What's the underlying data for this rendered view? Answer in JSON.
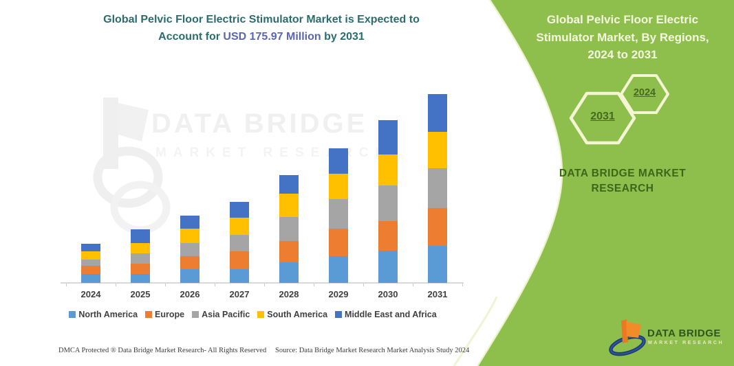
{
  "left_panel": {
    "title_line1": "Global Pelvic Floor Electric Stimulator Market is Expected to",
    "title_line2_prefix": "Account for ",
    "title_value": "USD 175.97 Million",
    "title_line2_suffix": " by 2031",
    "watermark_line1": "DATA BRIDGE",
    "watermark_line2": "MARKET RESEARCH",
    "footer_left": "DMCA Protected ® Data Bridge Market Research-  All Rights Reserved",
    "footer_right": "Source: Data Bridge Market Research  Market Analysis Study 2024"
  },
  "right_panel": {
    "panel_color": "#8ebf4c",
    "edge_highlight_color": "#eff3cd",
    "title_lines": [
      "Global Pelvic Floor Electric",
      "Stimulator Market, By Regions,",
      "2024 to 2031"
    ],
    "hexagons": [
      {
        "label": "2031"
      },
      {
        "label": "2024"
      }
    ],
    "brand_text": "DATA BRIDGE MARKET RESEARCH",
    "logo": {
      "name": "DATA BRIDGE",
      "subtitle": "MARKET RESEARCH"
    }
  },
  "chart_data": {
    "type": "bar",
    "stacked": true,
    "unit": "USD Million",
    "values_estimated_from_bar_heights": true,
    "title": "Global Pelvic Floor Electric Stimulator Market is Expected to Account for USD 175.97 Million by 2031",
    "categories": [
      "2024",
      "2025",
      "2026",
      "2027",
      "2028",
      "2029",
      "2030",
      "2031"
    ],
    "series": [
      {
        "name": "North America",
        "color": "#5b9bd5",
        "values": [
          8.3,
          8.3,
          12.8,
          12.8,
          19.2,
          25.0,
          30.1,
          34.6
        ]
      },
      {
        "name": "Europe",
        "color": "#ed7d31",
        "values": [
          7.7,
          9.6,
          12.2,
          16.6,
          19.8,
          25.6,
          27.5,
          35.2
        ]
      },
      {
        "name": "Asia Pacific",
        "color": "#a5a5a5",
        "values": [
          5.8,
          9.6,
          12.2,
          15.4,
          22.4,
          27.5,
          33.3,
          37.1
        ]
      },
      {
        "name": "South America",
        "color": "#ffc000",
        "values": [
          7.7,
          9.6,
          13.4,
          16.0,
          21.8,
          23.7,
          28.8,
          33.9
        ]
      },
      {
        "name": "Middle East and Africa",
        "color": "#4472c4",
        "values": [
          7.0,
          12.8,
          12.2,
          14.7,
          17.3,
          23.7,
          32.0,
          35.2
        ]
      }
    ],
    "totals_estimated": [
      36.5,
      49.9,
      62.8,
      75.5,
      100.5,
      125.5,
      151.7,
      175.97
    ],
    "stated_value_2031": 175.97,
    "xlabel": "",
    "ylabel": "",
    "ylim": [
      0,
      190
    ],
    "gridlines": false,
    "y_axis_visible": false,
    "legend_position": "bottom"
  }
}
